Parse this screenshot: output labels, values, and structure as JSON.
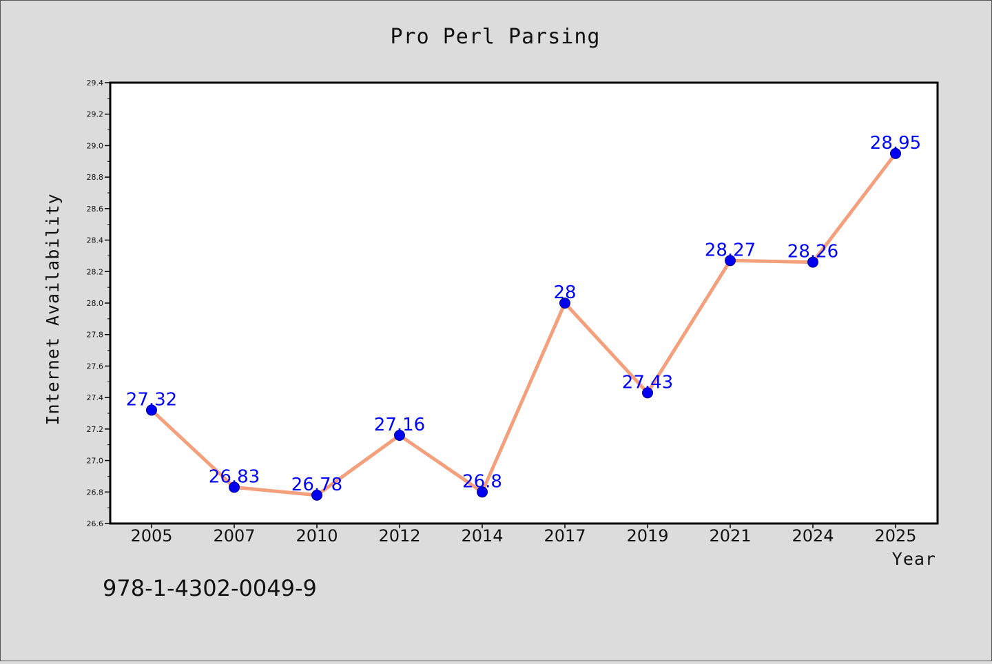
{
  "chart_data": {
    "type": "line",
    "title": "Pro Perl Parsing",
    "xlabel": "Year",
    "ylabel": "Internet Availability",
    "categories": [
      "2005",
      "2007",
      "2010",
      "2012",
      "2014",
      "2017",
      "2019",
      "2021",
      "2024",
      "2025"
    ],
    "series": [
      {
        "values": [
          27.32,
          26.83,
          26.78,
          27.16,
          26.8,
          28,
          27.43,
          28.27,
          28.26,
          28.95
        ],
        "labels": [
          "27.32",
          "26.83",
          "26.78",
          "27.16",
          "26.8",
          "28",
          "27.43",
          "28.27",
          "28.26",
          "28.95"
        ]
      }
    ],
    "ylim": [
      26.6,
      29.4
    ],
    "yticks": [
      "26.6",
      "26.8",
      "27.0",
      "27.2",
      "27.4",
      "27.6",
      "27.8",
      "28.0",
      "28.2",
      "28.4",
      "28.6",
      "28.8",
      "29.0",
      "29.2",
      "29.4"
    ],
    "grid": false,
    "legend": "none",
    "colors": {
      "background": "#dcdcdc",
      "plot_background": "#ffffff",
      "line": "#f4a07c",
      "marker": "#0000ee",
      "data_label": "#0000ff",
      "frame": "#000000"
    }
  },
  "footnote": "978-1-4302-0049-9"
}
